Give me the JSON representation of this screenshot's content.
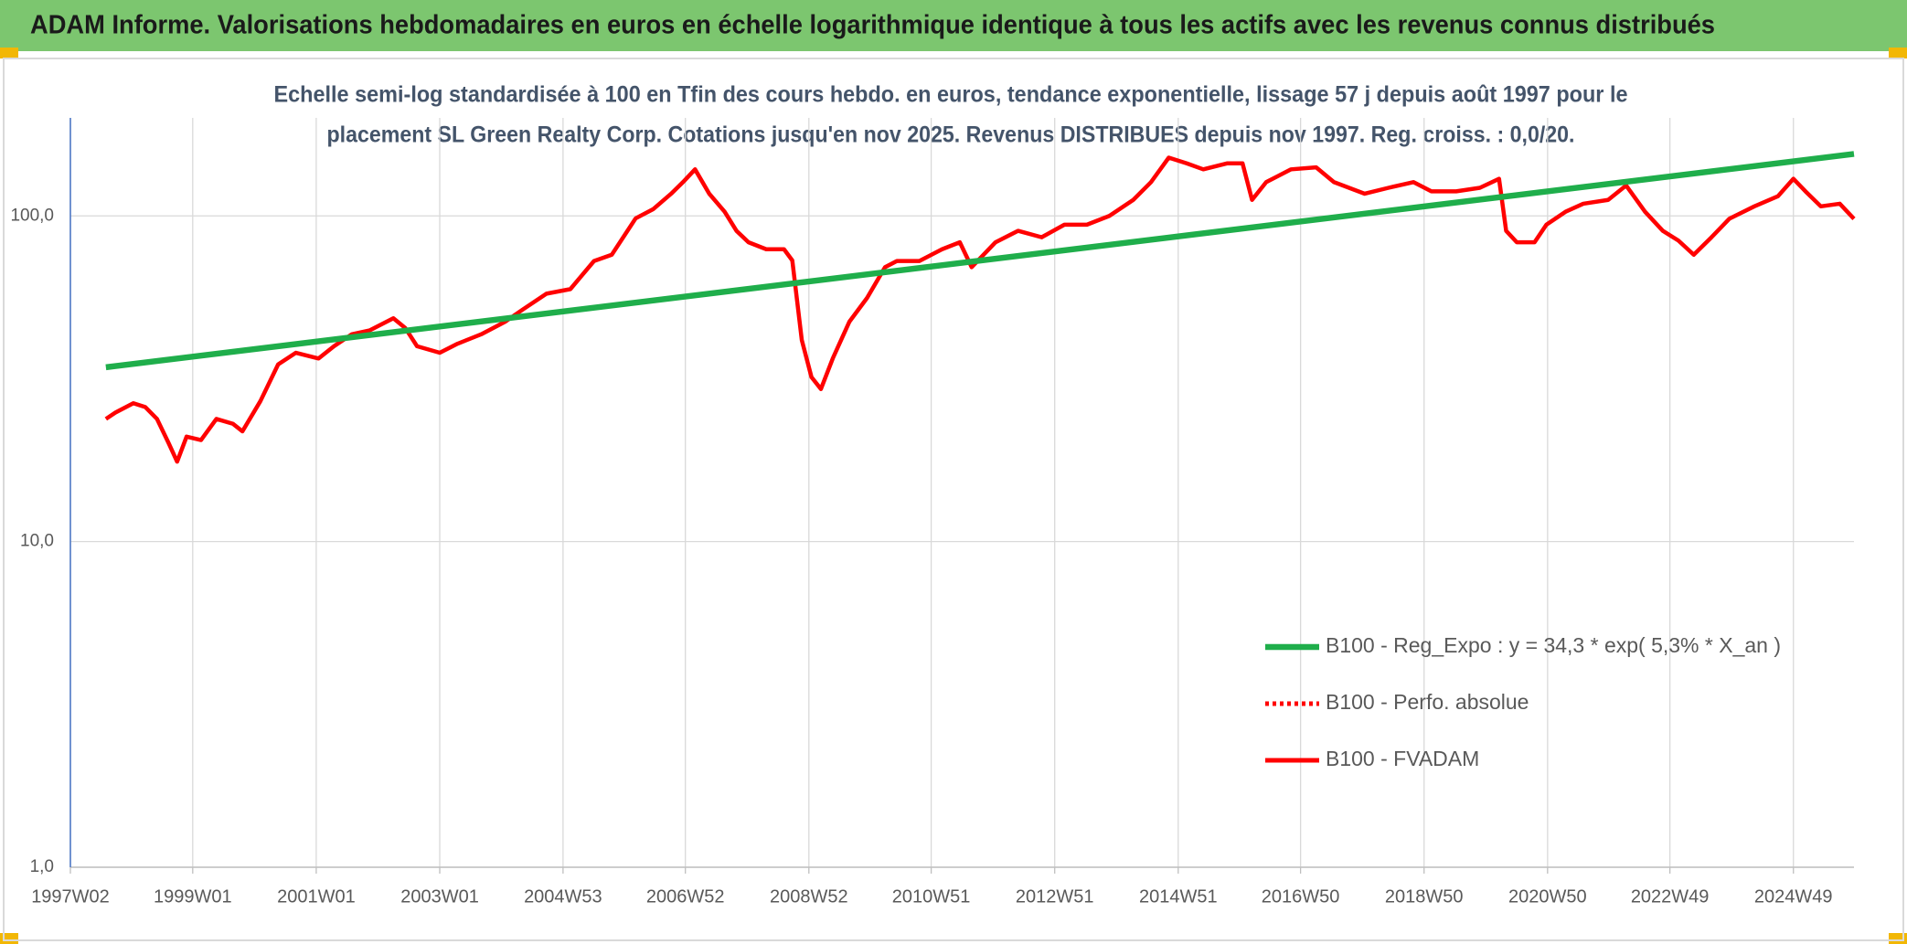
{
  "header": {
    "title": "ADAM Informe. Valorisations hebdomadaires en euros en échelle logarithmique identique à tous les actifs avec les revenus connus distribués"
  },
  "chart_data": {
    "type": "line",
    "subtitle": [
      "Echelle semi-log standardisée à 100 en Tfin des cours hebdo. en euros, tendance exponentielle, lissage 57 j depuis août 1997 pour le",
      "placement SL Green Realty Corp. Cotations jusqu'en nov 2025. Revenus DISTRIBUES depuis nov 1997. Reg. croiss. : 0,0/20."
    ],
    "log": true,
    "grid": true,
    "legend": "lower right",
    "ylim": [
      1,
      200
    ],
    "yticks": [
      {
        "value": 1,
        "label": "1,0"
      },
      {
        "value": 10,
        "label": "10,0"
      },
      {
        "value": 100,
        "label": "100,0"
      }
    ],
    "xlim": [
      "1997W02",
      "2025W48"
    ],
    "xticks": [
      "1997W02",
      "1999W01",
      "2001W01",
      "2003W01",
      "2004W53",
      "2006W52",
      "2008W52",
      "2010W51",
      "2012W51",
      "2014W51",
      "2016W50",
      "2018W50",
      "2020W50",
      "2022W49",
      "2024W49"
    ],
    "series": [
      {
        "name": "B100 - Reg_Expo : y = 34,3 * exp( 5,3% *  X_an )",
        "color": "#1fae4b",
        "style": "solid",
        "x": [
          "1997W32",
          "2025W48"
        ],
        "values": [
          34.3,
          155
        ]
      },
      {
        "name": "B100 - Perfo. absolue",
        "color": "#ff0000",
        "style": "dotted",
        "x": [],
        "values": []
      },
      {
        "name": "B100 - FVADAM",
        "color": "#ff0000",
        "style": "solid",
        "x": [
          "1997W32",
          "1997W40",
          "1998W03",
          "1998W13",
          "1998W23",
          "1998W33",
          "1998W40",
          "1998W48",
          "1999W08",
          "1999W21",
          "1999W35",
          "1999W43",
          "2000W06",
          "2000W21",
          "2000W36",
          "2001W03",
          "2001W16",
          "2001W31",
          "2001W46",
          "2002W14",
          "2002W24",
          "2002W34",
          "2003W01",
          "2003W16",
          "2003W36",
          "2004W04",
          "2004W19",
          "2004W39",
          "2005W07",
          "2005W27",
          "2005W42",
          "2006W10",
          "2006W25",
          "2006W40",
          "2006W50",
          "2007W08",
          "2007W20",
          "2007W33",
          "2007W43",
          "2008W01",
          "2008W16",
          "2008W31",
          "2008W38",
          "2008W46",
          "2009W02",
          "2009W10",
          "2009W20",
          "2009W34",
          "2009W49",
          "2010W12",
          "2010W22",
          "2010W41",
          "2011W08",
          "2011W23",
          "2011W33",
          "2012W01",
          "2012W20",
          "2012W40",
          "2013W07",
          "2013W26",
          "2013W45",
          "2014W13",
          "2014W28",
          "2014W43",
          "2015W06",
          "2015W20",
          "2015W40",
          "2016W01",
          "2016W09",
          "2016W21",
          "2016W42",
          "2017W11",
          "2017W26",
          "2017W52",
          "2018W20",
          "2018W41",
          "2019W04",
          "2019W25",
          "2019W45",
          "2020W09",
          "2020W15",
          "2020W24",
          "2020W39",
          "2020W49",
          "2021W13",
          "2021W28",
          "2021W49",
          "2022W12",
          "2022W28",
          "2022W43",
          "2023W04",
          "2023W17",
          "2023W32",
          "2023W47",
          "2024W16",
          "2024W36",
          "2024W49",
          "2025W07",
          "2025W20",
          "2025W36",
          "2025W48"
        ],
        "values": [
          23.8,
          24.9,
          26.6,
          25.9,
          23.8,
          20.0,
          17.6,
          21.0,
          20.5,
          23.8,
          23.0,
          21.8,
          27.0,
          35.0,
          38.0,
          36.5,
          39.8,
          43.3,
          44.5,
          48.5,
          45.3,
          39.8,
          38.0,
          40.5,
          43.3,
          47.3,
          51.6,
          57.7,
          59.6,
          72.7,
          76.0,
          98.3,
          105,
          117,
          127,
          139,
          117,
          103,
          90,
          83,
          79,
          79,
          73,
          41.6,
          32,
          29.4,
          36.5,
          47.3,
          56,
          69.6,
          72.7,
          72.7,
          79,
          83,
          69.6,
          83,
          90,
          86,
          94,
          94,
          100,
          112,
          127,
          151,
          145,
          139,
          145,
          145,
          112,
          127,
          139,
          141,
          127,
          117,
          122,
          127,
          119,
          119,
          122,
          130,
          90,
          83,
          83,
          94,
          103,
          109,
          112,
          124,
          103,
          90,
          84,
          76,
          86,
          98,
          107,
          115,
          130,
          119,
          107,
          109,
          98
        ]
      }
    ]
  }
}
